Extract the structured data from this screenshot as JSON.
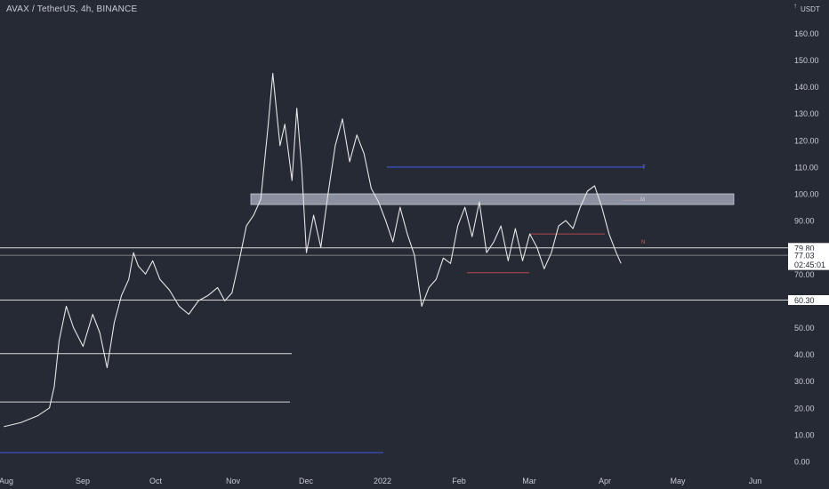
{
  "chart_data": {
    "type": "line",
    "title": "AVAX / TetherUS, 4h, BINANCE",
    "ylabel_unit": "USDT",
    "ylim": [
      -2,
      170
    ],
    "x_ticks": [
      "Aug",
      "Sep",
      "Oct",
      "Nov",
      "Dec",
      "2022",
      "Feb",
      "Mar",
      "Apr",
      "May",
      "Jun"
    ],
    "y_ticks": [
      "0.00",
      "10.00",
      "20.00",
      "30.00",
      "40.00",
      "50.00",
      "60.00",
      "70.00",
      "80.00",
      "90.00",
      "100.00",
      "110.00",
      "120.00",
      "130.00",
      "140.00",
      "150.00",
      "160.00"
    ],
    "grid": false,
    "series": [
      {
        "x": [
          "Jul 31",
          "Aug 7",
          "Aug 14",
          "Aug 19",
          "Aug 21",
          "Aug 23",
          "Aug 26",
          "Aug 29",
          "Sep 2",
          "Sep 6",
          "Sep 9",
          "Sep 12",
          "Sep 15",
          "Sep 18",
          "Sep 21",
          "Sep 23",
          "Sep 25",
          "Sep 28",
          "Oct 1",
          "Oct 4",
          "Oct 8",
          "Oct 12",
          "Oct 16",
          "Oct 20",
          "Oct 24",
          "Oct 28",
          "Oct 31",
          "Nov 3",
          "Nov 6",
          "Nov 9",
          "Nov 12",
          "Nov 15",
          "Nov 18",
          "Nov 20",
          "Nov 23",
          "Nov 25",
          "Nov 28",
          "Nov 30",
          "Dec 2",
          "Dec 4",
          "Dec 7",
          "Dec 10",
          "Dec 13",
          "Dec 16",
          "Dec 19",
          "Dec 22",
          "Dec 25",
          "Dec 28",
          "Dec 31",
          "Jan 3",
          "Jan 6",
          "Jan 9",
          "Jan 12",
          "Jan 15",
          "Jan 18",
          "Jan 21",
          "Jan 24",
          "Jan 27",
          "Jan 30",
          "Feb 2",
          "Feb 5",
          "Feb 8",
          "Feb 11",
          "Feb 14",
          "Feb 17",
          "Feb 20",
          "Feb 23",
          "Feb 26",
          "Mar 1",
          "Mar 4",
          "Mar 7",
          "Mar 10",
          "Mar 13",
          "Mar 16",
          "Mar 19",
          "Mar 22",
          "Mar 25",
          "Mar 28",
          "Mar 31",
          "Apr 3",
          "Apr 6",
          "Apr 9",
          "Apr 12",
          "Apr 14"
        ],
        "values": [
          13,
          14.5,
          17,
          20,
          28,
          45,
          58,
          50,
          43,
          55,
          48,
          35,
          52,
          62,
          68,
          78,
          73,
          70,
          75,
          68,
          64,
          58,
          55,
          60,
          62,
          65,
          60,
          63,
          75,
          88,
          92,
          98,
          125,
          145,
          118,
          126,
          105,
          132,
          110,
          78,
          92,
          80,
          100,
          118,
          128,
          112,
          122,
          115,
          102,
          97,
          90,
          82,
          95,
          85,
          77,
          58,
          65,
          68,
          76,
          74,
          88,
          95,
          84,
          97,
          78,
          82,
          88,
          75,
          87,
          75,
          85,
          80,
          72,
          78,
          88,
          90,
          87,
          95,
          101,
          103,
          95,
          85,
          78,
          74
        ]
      }
    ],
    "price_levels": [
      "79.80",
      "77.03",
      "60.30"
    ],
    "countdown": "02:45:01",
    "annotations": [
      "T",
      "M",
      "N"
    ]
  }
}
